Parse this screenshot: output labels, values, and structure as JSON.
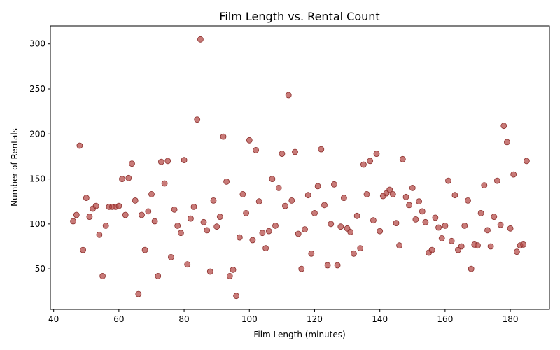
{
  "chart_data": {
    "type": "scatter",
    "title": "Film Length vs. Rental Count",
    "xlabel": "Film Length (minutes)",
    "ylabel": "Number of Rentals",
    "xlim": [
      39,
      192
    ],
    "ylim": [
      5,
      320
    ],
    "xticks": [
      40,
      60,
      80,
      100,
      120,
      140,
      160,
      180
    ],
    "yticks": [
      50,
      100,
      150,
      200,
      250,
      300
    ],
    "grid": false,
    "legend": "none",
    "point_color": "#b0413e",
    "point_edge_color": "#8b2f2c",
    "points": [
      [
        46,
        103
      ],
      [
        47,
        110
      ],
      [
        48,
        187
      ],
      [
        49,
        71
      ],
      [
        50,
        129
      ],
      [
        51,
        108
      ],
      [
        52,
        117
      ],
      [
        53,
        120
      ],
      [
        54,
        88
      ],
      [
        55,
        42
      ],
      [
        56,
        98
      ],
      [
        57,
        119
      ],
      [
        58,
        119
      ],
      [
        59,
        119
      ],
      [
        60,
        120
      ],
      [
        61,
        150
      ],
      [
        62,
        110
      ],
      [
        63,
        151
      ],
      [
        64,
        167
      ],
      [
        65,
        126
      ],
      [
        66,
        22
      ],
      [
        67,
        110
      ],
      [
        68,
        71
      ],
      [
        69,
        114
      ],
      [
        70,
        133
      ],
      [
        71,
        103
      ],
      [
        72,
        42
      ],
      [
        73,
        169
      ],
      [
        74,
        145
      ],
      [
        75,
        170
      ],
      [
        76,
        63
      ],
      [
        77,
        116
      ],
      [
        78,
        98
      ],
      [
        79,
        90
      ],
      [
        80,
        171
      ],
      [
        81,
        55
      ],
      [
        82,
        106
      ],
      [
        83,
        119
      ],
      [
        84,
        216
      ],
      [
        85,
        305
      ],
      [
        86,
        102
      ],
      [
        87,
        93
      ],
      [
        88,
        47
      ],
      [
        89,
        126
      ],
      [
        90,
        97
      ],
      [
        91,
        108
      ],
      [
        92,
        197
      ],
      [
        93,
        147
      ],
      [
        94,
        42
      ],
      [
        95,
        49
      ],
      [
        96,
        20
      ],
      [
        97,
        85
      ],
      [
        98,
        133
      ],
      [
        99,
        112
      ],
      [
        100,
        193
      ],
      [
        101,
        82
      ],
      [
        102,
        182
      ],
      [
        103,
        125
      ],
      [
        104,
        90
      ],
      [
        105,
        73
      ],
      [
        106,
        92
      ],
      [
        107,
        150
      ],
      [
        108,
        98
      ],
      [
        109,
        140
      ],
      [
        110,
        178
      ],
      [
        111,
        120
      ],
      [
        112,
        243
      ],
      [
        113,
        126
      ],
      [
        114,
        180
      ],
      [
        115,
        89
      ],
      [
        116,
        50
      ],
      [
        117,
        94
      ],
      [
        118,
        132
      ],
      [
        119,
        67
      ],
      [
        120,
        112
      ],
      [
        121,
        142
      ],
      [
        122,
        183
      ],
      [
        123,
        121
      ],
      [
        124,
        54
      ],
      [
        125,
        100
      ],
      [
        126,
        144
      ],
      [
        127,
        54
      ],
      [
        128,
        97
      ],
      [
        129,
        129
      ],
      [
        130,
        95
      ],
      [
        131,
        91
      ],
      [
        132,
        67
      ],
      [
        133,
        109
      ],
      [
        134,
        73
      ],
      [
        135,
        166
      ],
      [
        136,
        133
      ],
      [
        137,
        170
      ],
      [
        138,
        104
      ],
      [
        139,
        178
      ],
      [
        140,
        92
      ],
      [
        141,
        131
      ],
      [
        142,
        134
      ],
      [
        143,
        138
      ],
      [
        144,
        133
      ],
      [
        145,
        101
      ],
      [
        146,
        76
      ],
      [
        147,
        172
      ],
      [
        148,
        130
      ],
      [
        149,
        121
      ],
      [
        150,
        140
      ],
      [
        151,
        105
      ],
      [
        152,
        125
      ],
      [
        153,
        114
      ],
      [
        154,
        102
      ],
      [
        155,
        68
      ],
      [
        156,
        71
      ],
      [
        157,
        107
      ],
      [
        158,
        96
      ],
      [
        159,
        84
      ],
      [
        160,
        98
      ],
      [
        161,
        148
      ],
      [
        162,
        81
      ],
      [
        163,
        132
      ],
      [
        164,
        71
      ],
      [
        165,
        75
      ],
      [
        166,
        98
      ],
      [
        167,
        126
      ],
      [
        168,
        50
      ],
      [
        169,
        77
      ],
      [
        170,
        76
      ],
      [
        171,
        112
      ],
      [
        172,
        143
      ],
      [
        173,
        93
      ],
      [
        174,
        75
      ],
      [
        175,
        108
      ],
      [
        176,
        148
      ],
      [
        177,
        99
      ],
      [
        178,
        209
      ],
      [
        179,
        191
      ],
      [
        180,
        95
      ],
      [
        181,
        155
      ],
      [
        182,
        69
      ],
      [
        183,
        76
      ],
      [
        184,
        77
      ],
      [
        185,
        170
      ]
    ]
  }
}
